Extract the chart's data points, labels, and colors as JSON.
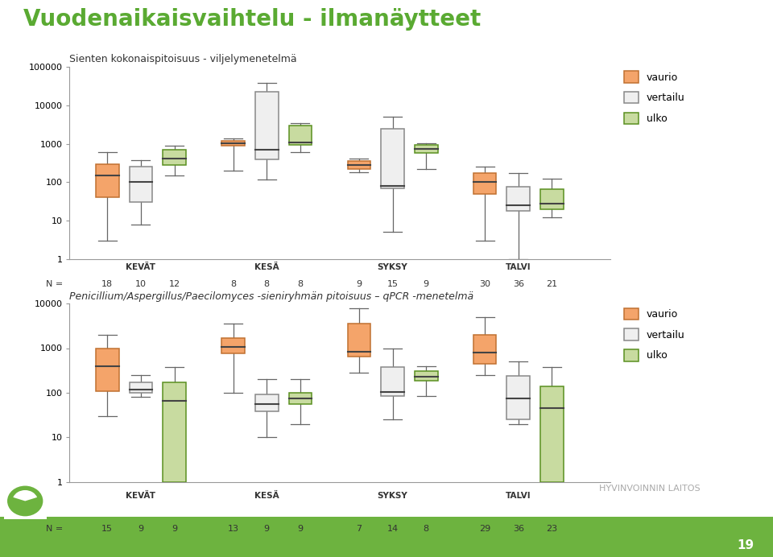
{
  "title_main": "Vuodenaikaisvaihtelu - ilmanäytteet",
  "title_main_color": "#5aaa32",
  "title_main_fontsize": 20,
  "background_color": "#ffffff",
  "subplot1_title": "Sienten kokonaispitoisuus - viljelymenetelmä",
  "subplot2_title": "Penicillium/Aspergillus/Paecilomyces -sieniryhmän pitoisuus – qPCR -menetelmä",
  "seasons": [
    "KEVÄT",
    "KESÄ",
    "SYKSY",
    "TALVI"
  ],
  "season_centers": [
    2.0,
    5.0,
    8.0,
    11.0
  ],
  "groups": [
    "vaurio",
    "vertailu",
    "ulko"
  ],
  "colors": {
    "vaurio": "#f4a46a",
    "vertailu": "#efefef",
    "ulko": "#c8dba0"
  },
  "edge_colors": {
    "vaurio": "#c07030",
    "vertailu": "#888888",
    "ulko": "#5a9020"
  },
  "median_color": "#555555",
  "plot1": {
    "ylim": [
      1,
      100000
    ],
    "yticks": [
      1,
      10,
      100,
      1000,
      10000,
      100000
    ],
    "groups_data": {
      "KEVÄT": {
        "vaurio": {
          "whislo": 3,
          "q1": 40,
          "median": 150,
          "q3": 300,
          "whishi": 600
        },
        "vertailu": {
          "whislo": 8,
          "q1": 30,
          "median": 100,
          "q3": 250,
          "whishi": 380
        },
        "ulko": {
          "whislo": 150,
          "q1": 280,
          "median": 420,
          "q3": 700,
          "whishi": 900
        }
      },
      "KESÄ": {
        "vaurio": {
          "whislo": 200,
          "q1": 900,
          "median": 1050,
          "q3": 1200,
          "whishi": 1400
        },
        "vertailu": {
          "whislo": 120,
          "q1": 400,
          "median": 700,
          "q3": 22000,
          "whishi": 38000
        },
        "ulko": {
          "whislo": 600,
          "q1": 950,
          "median": 1100,
          "q3": 3000,
          "whishi": 3500
        }
      },
      "SYKSY": {
        "vaurio": {
          "whislo": 180,
          "q1": 220,
          "median": 280,
          "q3": 350,
          "whishi": 420
        },
        "vertailu": {
          "whislo": 5,
          "q1": 70,
          "median": 80,
          "q3": 2500,
          "whishi": 5000
        },
        "ulko": {
          "whislo": 220,
          "q1": 580,
          "median": 720,
          "q3": 950,
          "whishi": 1050
        }
      },
      "TALVI": {
        "vaurio": {
          "whislo": 3,
          "q1": 50,
          "median": 100,
          "q3": 170,
          "whishi": 250
        },
        "vertailu": {
          "whislo": 1,
          "q1": 18,
          "median": 25,
          "q3": 75,
          "whishi": 175
        },
        "ulko": {
          "whislo": 12,
          "q1": 20,
          "median": 27,
          "q3": 65,
          "whishi": 125
        }
      }
    },
    "n_values": {
      "KEVÄT": [
        18,
        10,
        12
      ],
      "KESÄ": [
        8,
        8,
        8
      ],
      "SYKSY": [
        9,
        15,
        9
      ],
      "TALVI": [
        30,
        36,
        21
      ]
    },
    "x_positions": {
      "KEVÄT": [
        1.2,
        2.0,
        2.8
      ],
      "KESÄ": [
        4.2,
        5.0,
        5.8
      ],
      "SYKSY": [
        7.2,
        8.0,
        8.8
      ],
      "TALVI": [
        10.2,
        11.0,
        11.8
      ]
    }
  },
  "plot2": {
    "ylim": [
      1,
      10000
    ],
    "yticks": [
      1,
      10,
      100,
      1000,
      10000
    ],
    "groups_data": {
      "KEVÄT": {
        "vaurio": {
          "whislo": 30,
          "q1": 110,
          "median": 400,
          "q3": 1000,
          "whishi": 2000
        },
        "vertailu": {
          "whislo": 80,
          "q1": 100,
          "median": 115,
          "q3": 170,
          "whishi": 250
        },
        "ulko": {
          "whislo": 1,
          "q1": 1,
          "median": 65,
          "q3": 170,
          "whishi": 380
        }
      },
      "KESÄ": {
        "vaurio": {
          "whislo": 100,
          "q1": 750,
          "median": 1050,
          "q3": 1700,
          "whishi": 3500
        },
        "vertailu": {
          "whislo": 10,
          "q1": 38,
          "median": 55,
          "q3": 90,
          "whishi": 200
        },
        "ulko": {
          "whislo": 20,
          "q1": 55,
          "median": 75,
          "q3": 100,
          "whishi": 200
        }
      },
      "SYKSY": {
        "vaurio": {
          "whislo": 280,
          "q1": 650,
          "median": 820,
          "q3": 3500,
          "whishi": 8000
        },
        "vertailu": {
          "whislo": 25,
          "q1": 85,
          "median": 105,
          "q3": 380,
          "whishi": 1000
        },
        "ulko": {
          "whislo": 85,
          "q1": 185,
          "median": 225,
          "q3": 300,
          "whishi": 400
        }
      },
      "TALVI": {
        "vaurio": {
          "whislo": 250,
          "q1": 450,
          "median": 800,
          "q3": 2000,
          "whishi": 5000
        },
        "vertailu": {
          "whislo": 20,
          "q1": 25,
          "median": 75,
          "q3": 240,
          "whishi": 500
        },
        "ulko": {
          "whislo": 1,
          "q1": 1,
          "median": 45,
          "q3": 140,
          "whishi": 380
        }
      }
    },
    "n_values": {
      "KEVÄT": [
        15,
        9,
        9
      ],
      "KESÄ": [
        13,
        9,
        9
      ],
      "SYKSY": [
        7,
        14,
        8
      ],
      "TALVI": [
        29,
        36,
        23
      ]
    },
    "x_positions": {
      "KEVÄT": [
        1.2,
        2.0,
        2.8
      ],
      "KESÄ": [
        4.2,
        5.0,
        5.8
      ],
      "SYKSY": [
        7.2,
        8.0,
        8.8
      ],
      "TALVI": [
        10.2,
        11.0,
        11.8
      ]
    }
  },
  "green_bar_color": "#6db33f",
  "n_label": "N = ",
  "page_number": "19",
  "hyvinvoinnin_text": "HYVINVOINNIN LAITOS"
}
